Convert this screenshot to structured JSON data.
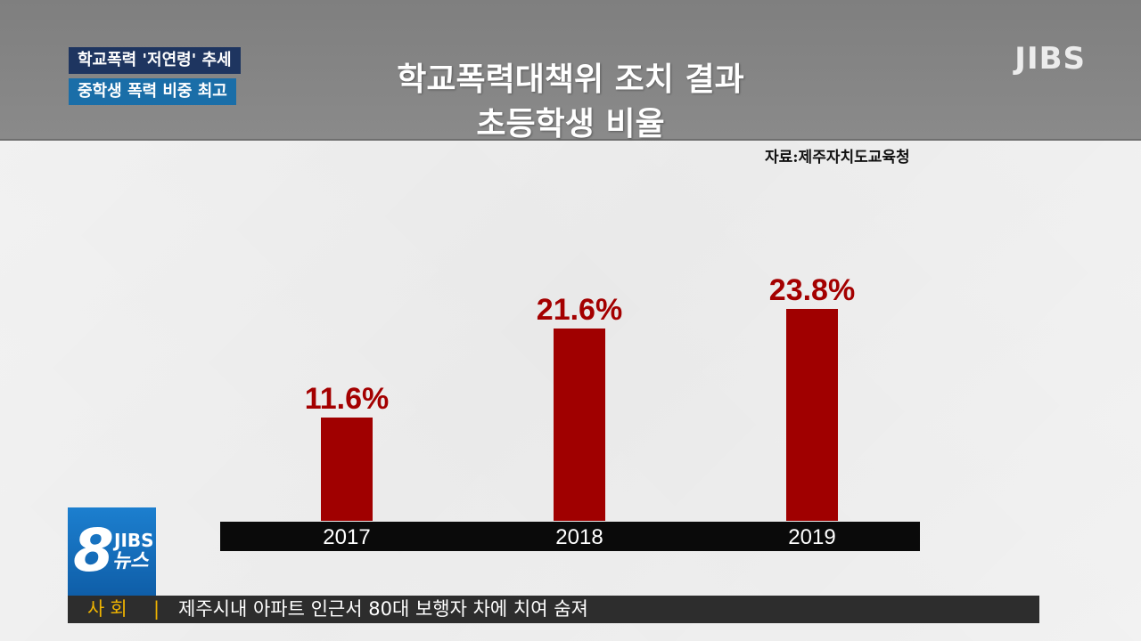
{
  "captions": {
    "line1": "학교폭력 '저연령' 추세",
    "line2": "중학생 폭력 비중 최고"
  },
  "brand": {
    "logo": "JIBS",
    "badge_number": "8",
    "badge_brand": "JIBS",
    "badge_news": "뉴스"
  },
  "colors": {
    "bar": "#a00000",
    "value_label": "#a40000",
    "axis_band": "#0a0a0a",
    "axis_text": "#ffffff"
  },
  "chart_data": {
    "type": "bar",
    "title": [
      "학교폭력대책위 조치 결과",
      "초등학생 비율"
    ],
    "source": "자료:제주자치도교육청",
    "categories": [
      "2017",
      "2018",
      "2019"
    ],
    "values": [
      11.6,
      21.6,
      23.8
    ],
    "value_labels": [
      "11.6%",
      "21.6%",
      "23.8%"
    ],
    "unit": "%",
    "ylim": [
      0,
      28
    ],
    "grid": false,
    "legend": "none"
  },
  "ticker": {
    "category": "사회",
    "separator": "|",
    "headline": "제주시내 아파트 인근서 80대 보행자 차에 치여 숨져"
  }
}
